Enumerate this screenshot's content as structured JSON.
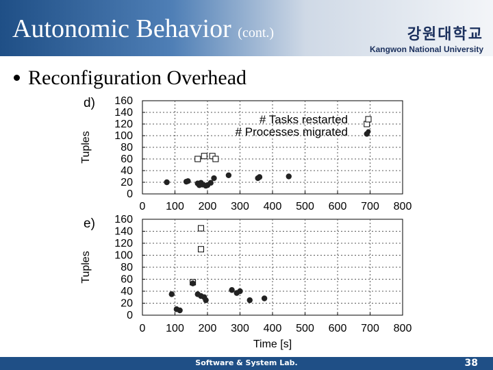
{
  "slide": {
    "title": "Autonomic Behavior",
    "title_suffix": "(cont.)",
    "bullet": "Reconfiguration Overhead",
    "logo_korean": "강원대학교",
    "logo_english": "Kangwon National University",
    "footer": "Software & System Lab.",
    "page_number": "38"
  },
  "colors": {
    "header_dark": "#1f4f86",
    "text_white": "#ffffff",
    "logo_navy": "#1a2f5c"
  },
  "chart_data": [
    {
      "type": "scatter",
      "panel_label": "d)",
      "ylabel": "Tuples",
      "xlabel": "",
      "xlim": [
        0,
        800
      ],
      "ylim": [
        0,
        160
      ],
      "xticks": [
        0,
        100,
        200,
        300,
        400,
        500,
        600,
        700,
        800
      ],
      "yticks": [
        0,
        20,
        40,
        60,
        80,
        100,
        120,
        140,
        160
      ],
      "grid": "dotted",
      "legend": "top-right",
      "series": [
        {
          "name": "# Tasks restarted",
          "marker": "square",
          "points": [
            [
              170,
              60
            ],
            [
              190,
              65
            ],
            [
              215,
              65
            ],
            [
              225,
              60
            ],
            [
              690,
              120
            ]
          ]
        },
        {
          "name": "# Processes migrated",
          "marker": "circle",
          "points": [
            [
              75,
              20
            ],
            [
              135,
              21
            ],
            [
              140,
              22
            ],
            [
              170,
              18
            ],
            [
              175,
              15
            ],
            [
              180,
              19
            ],
            [
              185,
              16
            ],
            [
              195,
              14
            ],
            [
              200,
              15
            ],
            [
              210,
              19
            ],
            [
              220,
              27
            ],
            [
              265,
              32
            ],
            [
              355,
              27
            ],
            [
              360,
              29
            ],
            [
              450,
              30
            ],
            [
              690,
              103
            ]
          ]
        }
      ]
    },
    {
      "type": "scatter",
      "panel_label": "e)",
      "ylabel": "Tuples",
      "xlabel": "Time [s]",
      "xlim": [
        0,
        800
      ],
      "ylim": [
        0,
        160
      ],
      "xticks": [
        0,
        100,
        200,
        300,
        400,
        500,
        600,
        700,
        800
      ],
      "yticks": [
        0,
        20,
        40,
        60,
        80,
        100,
        120,
        140,
        160
      ],
      "grid": "dotted",
      "series": [
        {
          "name": "",
          "marker": "square",
          "points": [
            [
              180,
              145
            ],
            [
              180,
              110
            ],
            [
              155,
              55
            ]
          ]
        },
        {
          "name": "",
          "marker": "circle",
          "points": [
            [
              90,
              35
            ],
            [
              105,
              10
            ],
            [
              115,
              8
            ],
            [
              155,
              53
            ],
            [
              170,
              35
            ],
            [
              180,
              32
            ],
            [
              190,
              30
            ],
            [
              195,
              25
            ],
            [
              275,
              42
            ],
            [
              290,
              37
            ],
            [
              300,
              40
            ],
            [
              330,
              25
            ],
            [
              375,
              28
            ]
          ]
        }
      ]
    }
  ]
}
